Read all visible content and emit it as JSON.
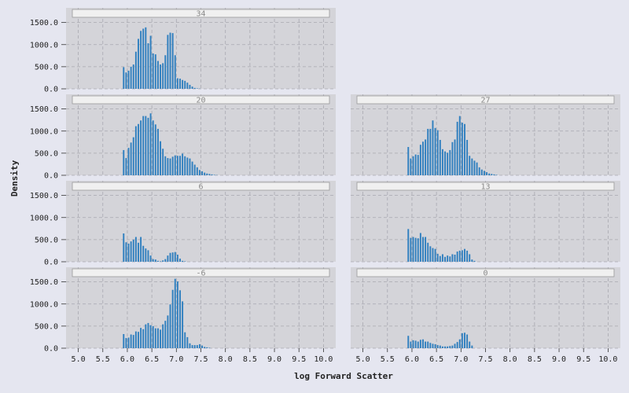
{
  "chart_data": {
    "type": "bar",
    "xlabel": "log Forward Scatter",
    "ylabel": "Density",
    "xlim": [
      4.75,
      10.25
    ],
    "ylim": [
      0,
      1600
    ],
    "xticks": [
      "5.0",
      "5.5",
      "6.0",
      "6.5",
      "7.0",
      "7.5",
      "8.0",
      "8.5",
      "9.0",
      "9.5",
      "10.0"
    ],
    "yticks": [
      "0.0",
      "500.0",
      "1000.0",
      "1500.0"
    ],
    "bin_start": 5.9,
    "bin_width": 0.05,
    "grid": true,
    "colors": {
      "bar": "#2f7fbf",
      "panel_bg": "#d4d4d9",
      "page_bg": "#e5e6f0",
      "strip_bg": "#f0f0f0"
    },
    "panels": [
      {
        "label": "34",
        "values": [
          490,
          370,
          410,
          500,
          550,
          840,
          1130,
          1310,
          1360,
          1390,
          1030,
          1200,
          800,
          780,
          630,
          550,
          580,
          760,
          1220,
          1270,
          1260,
          760,
          240,
          230,
          200,
          180,
          140,
          90,
          50,
          20,
          10,
          5
        ]
      },
      {
        "label": "20",
        "values": [
          570,
          390,
          620,
          740,
          860,
          1110,
          1160,
          1240,
          1340,
          1340,
          1300,
          1400,
          1240,
          1150,
          1050,
          770,
          600,
          430,
          390,
          380,
          420,
          450,
          440,
          440,
          490,
          430,
          400,
          380,
          310,
          240,
          180,
          120,
          90,
          60,
          40,
          30,
          20,
          10,
          5
        ]
      },
      {
        "label": "27",
        "values": [
          640,
          380,
          430,
          470,
          460,
          690,
          760,
          810,
          1050,
          1050,
          1240,
          1070,
          1020,
          800,
          590,
          540,
          510,
          570,
          750,
          810,
          1210,
          1340,
          1190,
          1160,
          800,
          440,
          380,
          330,
          290,
          180,
          130,
          100,
          70,
          40,
          30,
          20,
          10
        ]
      },
      {
        "label": "6",
        "values": [
          640,
          440,
          410,
          460,
          500,
          560,
          430,
          560,
          360,
          300,
          260,
          140,
          60,
          50,
          20,
          10,
          30,
          60,
          140,
          200,
          210,
          220,
          160,
          70,
          20,
          10
        ]
      },
      {
        "label": "13",
        "values": [
          740,
          540,
          560,
          540,
          530,
          650,
          560,
          560,
          430,
          350,
          310,
          290,
          180,
          130,
          170,
          110,
          140,
          120,
          170,
          160,
          230,
          250,
          260,
          290,
          250,
          170,
          50,
          20
        ]
      },
      {
        "label": "-6",
        "values": [
          320,
          230,
          240,
          310,
          300,
          380,
          370,
          460,
          430,
          540,
          570,
          520,
          500,
          450,
          450,
          420,
          540,
          620,
          740,
          990,
          1320,
          1570,
          1510,
          1310,
          1060,
          360,
          250,
          110,
          70,
          70,
          70,
          90,
          60,
          30,
          20,
          10
        ]
      },
      {
        "label": "0",
        "values": [
          280,
          150,
          180,
          170,
          150,
          190,
          200,
          150,
          150,
          120,
          100,
          90,
          70,
          60,
          40,
          40,
          40,
          50,
          60,
          100,
          140,
          200,
          340,
          350,
          310,
          150,
          60
        ]
      }
    ]
  }
}
